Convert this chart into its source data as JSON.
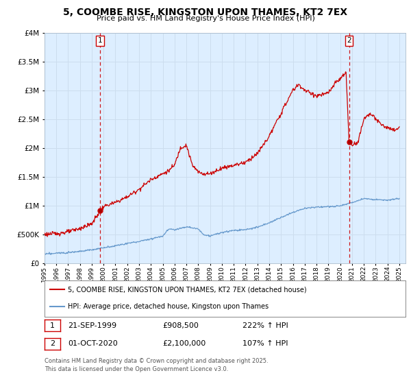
{
  "title1": "5, COOMBE RISE, KINGSTON UPON THAMES, KT2 7EX",
  "title2": "Price paid vs. HM Land Registry's House Price Index (HPI)",
  "legend_label1": "5, COOMBE RISE, KINGSTON UPON THAMES, KT2 7EX (detached house)",
  "legend_label2": "HPI: Average price, detached house, Kingston upon Thames",
  "ann1_date": "21-SEP-1999",
  "ann1_price": "£908,500",
  "ann1_hpi": "222% ↑ HPI",
  "ann2_date": "01-OCT-2020",
  "ann2_price": "£2,100,000",
  "ann2_hpi": "107% ↑ HPI",
  "footer": "Contains HM Land Registry data © Crown copyright and database right 2025.\nThis data is licensed under the Open Government Licence v3.0.",
  "line1_color": "#cc0000",
  "line2_color": "#6699cc",
  "vline_color": "#cc0000",
  "grid_color": "#ccddee",
  "bg_color": "#ddeeff",
  "plot_bg": "#ddeeff",
  "marker1_x": 1999.72,
  "marker1_y": 908500,
  "marker2_x": 2020.75,
  "marker2_y": 2100000,
  "xlim": [
    1995,
    2025.5
  ],
  "ylim": [
    0,
    4000000
  ],
  "yticks": [
    0,
    500000,
    1000000,
    1500000,
    2000000,
    2500000,
    3000000,
    3500000,
    4000000
  ],
  "prop_anchors_x": [
    1995,
    1996,
    1997,
    1998,
    1999.0,
    1999.72,
    2000,
    2001,
    2002,
    2003,
    2004,
    2005,
    2005.5,
    2006,
    2006.5,
    2007,
    2007.5,
    2008,
    2008.5,
    2009,
    2009.5,
    2010,
    2011,
    2012,
    2013,
    2014,
    2015,
    2016,
    2016.5,
    2017,
    2018,
    2019,
    2019.5,
    2020.0,
    2020.5,
    2020.75,
    2021,
    2021.5,
    2022,
    2022.5,
    2023,
    2023.5,
    2024,
    2024.5,
    2025
  ],
  "prop_anchors_y": [
    500000,
    510000,
    540000,
    600000,
    680000,
    908500,
    980000,
    1050000,
    1150000,
    1280000,
    1450000,
    1550000,
    1600000,
    1700000,
    2000000,
    2050000,
    1700000,
    1580000,
    1550000,
    1550000,
    1600000,
    1650000,
    1700000,
    1750000,
    1900000,
    2200000,
    2600000,
    3000000,
    3100000,
    3000000,
    2900000,
    2950000,
    3100000,
    3200000,
    3300000,
    2100000,
    2050000,
    2100000,
    2500000,
    2600000,
    2500000,
    2400000,
    2350000,
    2300000,
    2350000
  ],
  "hpi_anchors_x": [
    1995,
    1996,
    1997,
    1998,
    1999,
    2000,
    2001,
    2002,
    2003,
    2004,
    2005,
    2005.5,
    2006,
    2007,
    2008,
    2008.5,
    2009,
    2009.5,
    2010,
    2011,
    2012,
    2013,
    2014,
    2015,
    2016,
    2017,
    2018,
    2019,
    2020,
    2021,
    2022,
    2023,
    2024,
    2025
  ],
  "hpi_anchors_y": [
    155000,
    170000,
    185000,
    205000,
    230000,
    265000,
    300000,
    340000,
    375000,
    420000,
    470000,
    590000,
    580000,
    630000,
    590000,
    490000,
    470000,
    500000,
    530000,
    565000,
    580000,
    620000,
    700000,
    790000,
    880000,
    950000,
    970000,
    980000,
    990000,
    1050000,
    1120000,
    1100000,
    1090000,
    1120000
  ]
}
